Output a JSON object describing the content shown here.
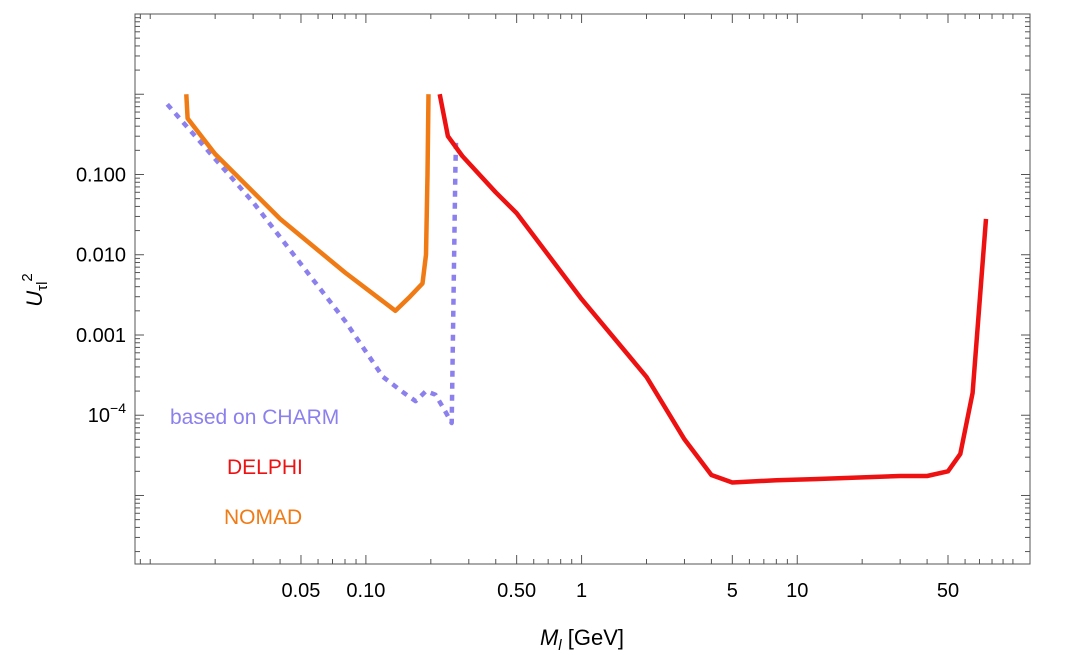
{
  "chart_data": {
    "type": "line",
    "title": "",
    "xlabel": {
      "symbol": "M",
      "subscript": "l",
      "unit": "[GeV]"
    },
    "ylabel": {
      "symbol": "U",
      "subscript": "τl",
      "superscript": "2"
    },
    "x_scale": "log",
    "y_scale": "log",
    "xlim": [
      0.0085,
      120
    ],
    "ylim": [
      1.4e-06,
      10
    ],
    "x_tick_labels": [
      {
        "value": 0.05,
        "label": "0.05"
      },
      {
        "value": 0.1,
        "label": "0.10"
      },
      {
        "value": 0.5,
        "label": "0.50"
      },
      {
        "value": 1,
        "label": "1"
      },
      {
        "value": 5,
        "label": "5"
      },
      {
        "value": 10,
        "label": "10"
      },
      {
        "value": 50,
        "label": "50"
      }
    ],
    "y_tick_labels": [
      {
        "value": 0.1,
        "label": "0.100"
      },
      {
        "value": 0.01,
        "label": "0.010"
      },
      {
        "value": 0.001,
        "label": "0.001"
      },
      {
        "value": 0.0001,
        "label_base": "10",
        "label_exp": "−4"
      }
    ],
    "grid": false,
    "legend_placement": "bottom-left",
    "series": [
      {
        "name": "based on CHARM",
        "color": "#8b80ee",
        "dash": "dotted",
        "points": [
          [
            0.012,
            0.75
          ],
          [
            0.03,
            0.045
          ],
          [
            0.08,
            0.0015
          ],
          [
            0.12,
            0.0003
          ],
          [
            0.15,
            0.00019
          ],
          [
            0.17,
            0.00015
          ],
          [
            0.19,
            0.0002
          ],
          [
            0.21,
            0.00018
          ],
          [
            0.23,
            0.00012
          ],
          [
            0.25,
            8e-05
          ],
          [
            0.26,
            0.12
          ],
          [
            0.262,
            0.28
          ]
        ]
      },
      {
        "name": "DELPHI",
        "color": "#ee1111",
        "dash": "solid",
        "points": [
          [
            0.22,
            1.0
          ],
          [
            0.24,
            0.3
          ],
          [
            0.28,
            0.17
          ],
          [
            0.4,
            0.06
          ],
          [
            0.5,
            0.033
          ],
          [
            1.0,
            0.0028
          ],
          [
            2.0,
            0.0003
          ],
          [
            3.0,
            5e-05
          ],
          [
            4.0,
            1.8e-05
          ],
          [
            5.0,
            1.45e-05
          ],
          [
            8.0,
            1.55e-05
          ],
          [
            12.0,
            1.6e-05
          ],
          [
            30.0,
            1.75e-05
          ],
          [
            40.0,
            1.75e-05
          ],
          [
            50.0,
            2e-05
          ],
          [
            57.0,
            3.3e-05
          ],
          [
            65.0,
            0.00019
          ],
          [
            75.0,
            0.028
          ]
        ]
      },
      {
        "name": "NOMAD",
        "color": "#f07a14",
        "dash": "solid",
        "points": [
          [
            0.0147,
            1.0
          ],
          [
            0.0149,
            0.5
          ],
          [
            0.02,
            0.18
          ],
          [
            0.04,
            0.028
          ],
          [
            0.08,
            0.006
          ],
          [
            0.137,
            0.002
          ],
          [
            0.16,
            0.003
          ],
          [
            0.183,
            0.0044
          ],
          [
            0.19,
            0.01
          ],
          [
            0.193,
            0.1
          ],
          [
            0.195,
            1.0
          ]
        ]
      }
    ]
  }
}
